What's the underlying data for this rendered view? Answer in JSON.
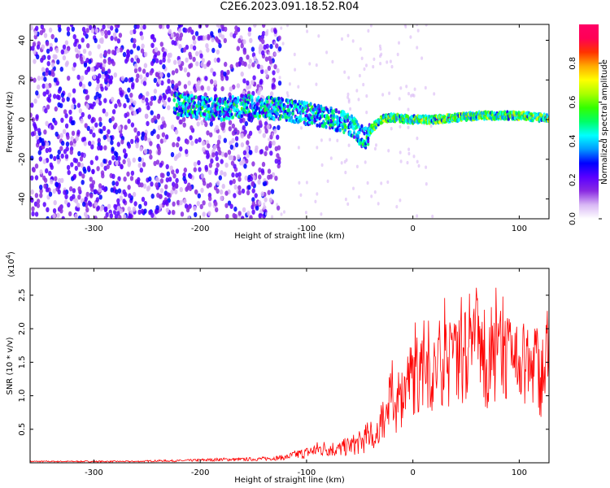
{
  "title": "C2E6.2023.091.18.52.R04",
  "chart_data": [
    {
      "type": "heatmap",
      "xlabel": "Height of straight line (km)",
      "ylabel": "Frequency (Hz)",
      "xlim": [
        -360,
        128
      ],
      "ylim": [
        -50,
        48
      ],
      "xticks": [
        -300,
        -200,
        -100,
        0,
        100
      ],
      "yticks": [
        -40,
        -20,
        0,
        20,
        40
      ],
      "colorbar": {
        "label": "Normalized spectral amplitude",
        "range": [
          0.0,
          1.0
        ],
        "ticks": [
          "0.0",
          "0.2",
          "0.4",
          "0.6",
          "0.8"
        ],
        "tick_values": [
          0.0,
          0.2,
          0.4,
          0.6,
          0.8
        ],
        "colors": [
          "#ffffff",
          "#d9b8f5",
          "#8a2be2",
          "#5a00ff",
          "#0000ff",
          "#0099ff",
          "#00ffff",
          "#00ff66",
          "#33ff00",
          "#aaff00",
          "#ffff00",
          "#ffaa00",
          "#ff3300",
          "#ff0055",
          "#ff0066"
        ]
      },
      "ridge": {
        "height_km": [
          -225,
          -200,
          -180,
          -160,
          -140,
          -120,
          -100,
          -80,
          -60,
          -45,
          -40,
          -30,
          -20,
          0,
          20,
          40,
          60,
          80,
          100,
          120,
          128
        ],
        "frequency_hz": [
          8,
          6,
          5,
          7,
          6,
          5,
          3,
          1,
          -2,
          -10,
          -5,
          0,
          1,
          0,
          0,
          1,
          2,
          2,
          2,
          1,
          1
        ]
      }
    },
    {
      "type": "line",
      "xlabel": "Height of straight line (km)",
      "ylabel": "SNR (10 * v/v)",
      "exponent_label": "(x10",
      "exponent_sup": "4",
      "exponent_close": ")",
      "xlim": [
        -360,
        128
      ],
      "ylim": [
        0,
        2.9
      ],
      "xticks": [
        -300,
        -200,
        -100,
        0,
        100
      ],
      "yticks": [
        0.5,
        1.0,
        1.5,
        2.0,
        2.5
      ],
      "ytick_labels": [
        "0.5",
        "1.0",
        "1.5",
        "2.0",
        "2.5"
      ],
      "series": [
        {
          "name": "SNR",
          "color": "#ff0000",
          "x": [
            -360,
            -340,
            -320,
            -300,
            -280,
            -260,
            -240,
            -220,
            -200,
            -180,
            -160,
            -140,
            -120,
            -110,
            -100,
            -90,
            -80,
            -70,
            -60,
            -50,
            -45,
            -40,
            -35,
            -30,
            -25,
            -20,
            -15,
            -10,
            -5,
            0,
            5,
            10,
            15,
            20,
            25,
            30,
            35,
            40,
            45,
            50,
            55,
            60,
            65,
            70,
            75,
            80,
            85,
            90,
            95,
            100,
            105,
            110,
            115,
            120,
            125,
            128
          ],
          "y": [
            0.02,
            0.02,
            0.02,
            0.02,
            0.02,
            0.02,
            0.03,
            0.03,
            0.04,
            0.05,
            0.05,
            0.06,
            0.08,
            0.12,
            0.15,
            0.2,
            0.22,
            0.2,
            0.25,
            0.3,
            0.35,
            0.45,
            0.3,
            0.7,
            0.6,
            1.1,
            0.75,
            1.0,
            1.2,
            1.3,
            1.2,
            1.5,
            1.4,
            1.3,
            1.5,
            1.6,
            1.4,
            1.8,
            1.5,
            1.6,
            1.5,
            1.9,
            1.6,
            1.4,
            1.5,
            1.6,
            1.7,
            1.5,
            1.4,
            1.6,
            1.5,
            1.3,
            1.6,
            1.2,
            1.5,
            1.4
          ]
        }
      ]
    }
  ]
}
